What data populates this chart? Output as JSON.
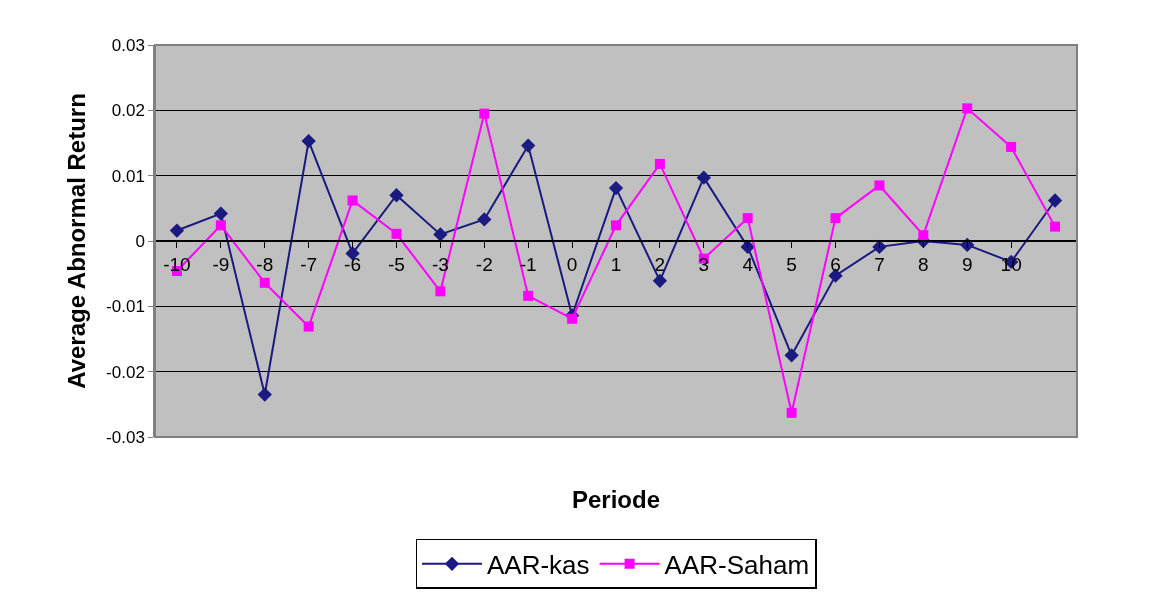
{
  "chart_data": {
    "type": "line",
    "xlabel": "Periode",
    "ylabel": "Average Abnormal Return",
    "categories": [
      "-10",
      "-9",
      "-8",
      "-7",
      "-6",
      "-5",
      "-3",
      "-2",
      "-1",
      "0",
      "1",
      "2",
      "3",
      "4",
      "5",
      "6",
      "7",
      "8",
      "9",
      "10",
      null
    ],
    "series": [
      {
        "name": "AAR-kas",
        "color": "#1a1a80",
        "marker": "diamond",
        "values": [
          0.0016,
          0.0042,
          -0.0235,
          0.0153,
          -0.0019,
          0.007,
          0.001,
          0.0033,
          0.0146,
          -0.0114,
          0.0081,
          -0.0061,
          0.0097,
          -0.0009,
          -0.0175,
          -0.0053,
          -0.0009,
          0.0,
          -0.0006,
          -0.0032,
          0.0062
        ]
      },
      {
        "name": "AAR-Saham",
        "color": "#ff00ff",
        "marker": "square",
        "values": [
          -0.0046,
          0.0024,
          -0.0064,
          -0.0131,
          0.0062,
          0.0011,
          -0.0077,
          0.0195,
          -0.0084,
          -0.0119,
          0.0024,
          0.0118,
          -0.0027,
          0.0035,
          -0.0263,
          0.0035,
          0.0085,
          0.0009,
          0.0203,
          0.0144,
          0.0022
        ]
      }
    ],
    "ylim": [
      -0.03,
      0.03
    ],
    "yticks": [
      {
        "value": -0.03,
        "label": "-0.03"
      },
      {
        "value": -0.02,
        "label": "-0.02"
      },
      {
        "value": -0.01,
        "label": "-0.01"
      },
      0,
      {
        "value": 0.01,
        "label": "0.01"
      },
      {
        "value": 0.02,
        "label": "0.02"
      },
      {
        "value": 0.03,
        "label": "0.03"
      }
    ],
    "grid": "y",
    "legend": "bottom",
    "line_style": "solid"
  }
}
